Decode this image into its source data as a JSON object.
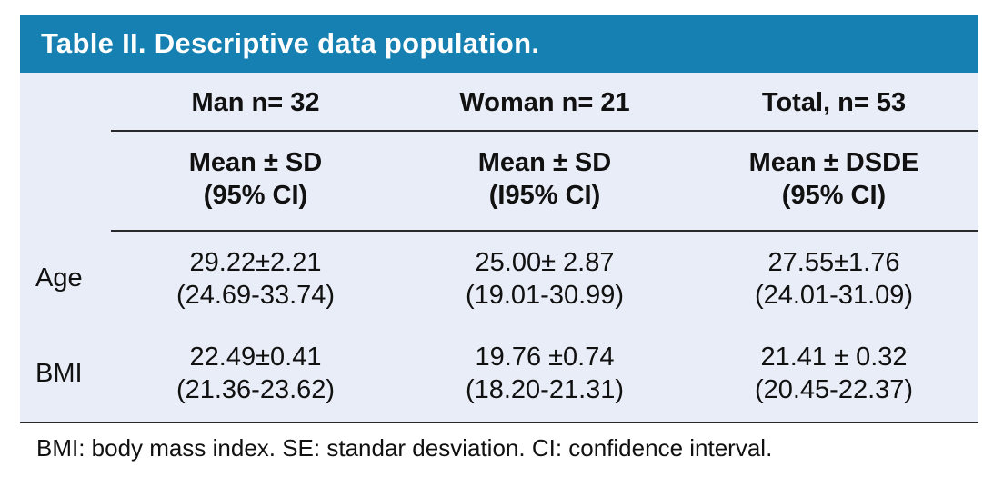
{
  "table": {
    "title": "Table II. Descriptive data population.",
    "title_bar_color": "#1580b1",
    "body_bg": "#e9edf7",
    "columns": [
      {
        "label": "Man n= 32",
        "subheader_line1": "Mean ± SD",
        "subheader_line2": "(95% CI)"
      },
      {
        "label": "Woman n= 21",
        "subheader_line1": "Mean ± SD",
        "subheader_line2": "(I95% CI)"
      },
      {
        "label": "Total, n= 53",
        "subheader_line1": "Mean ± DSDE",
        "subheader_line2": "(95% CI)"
      }
    ],
    "rows": [
      {
        "label": "Age",
        "values": [
          {
            "mean": "29.22±2.21",
            "ci": "(24.69-33.74)"
          },
          {
            "mean": "25.00± 2.87",
            "ci": "(19.01-30.99)"
          },
          {
            "mean": "27.55±1.76",
            "ci": "(24.01-31.09)"
          }
        ]
      },
      {
        "label": "BMI",
        "values": [
          {
            "mean": "22.49±0.41",
            "ci": "(21.36-23.62)"
          },
          {
            "mean": "19.76 ±0.74",
            "ci": "(18.20-21.31)"
          },
          {
            "mean": "21.41 ± 0.32",
            "ci": "(20.45-22.37)"
          }
        ]
      }
    ],
    "footnote": "BMI: body mass index. SE: standar desviation. CI: confidence interval."
  }
}
